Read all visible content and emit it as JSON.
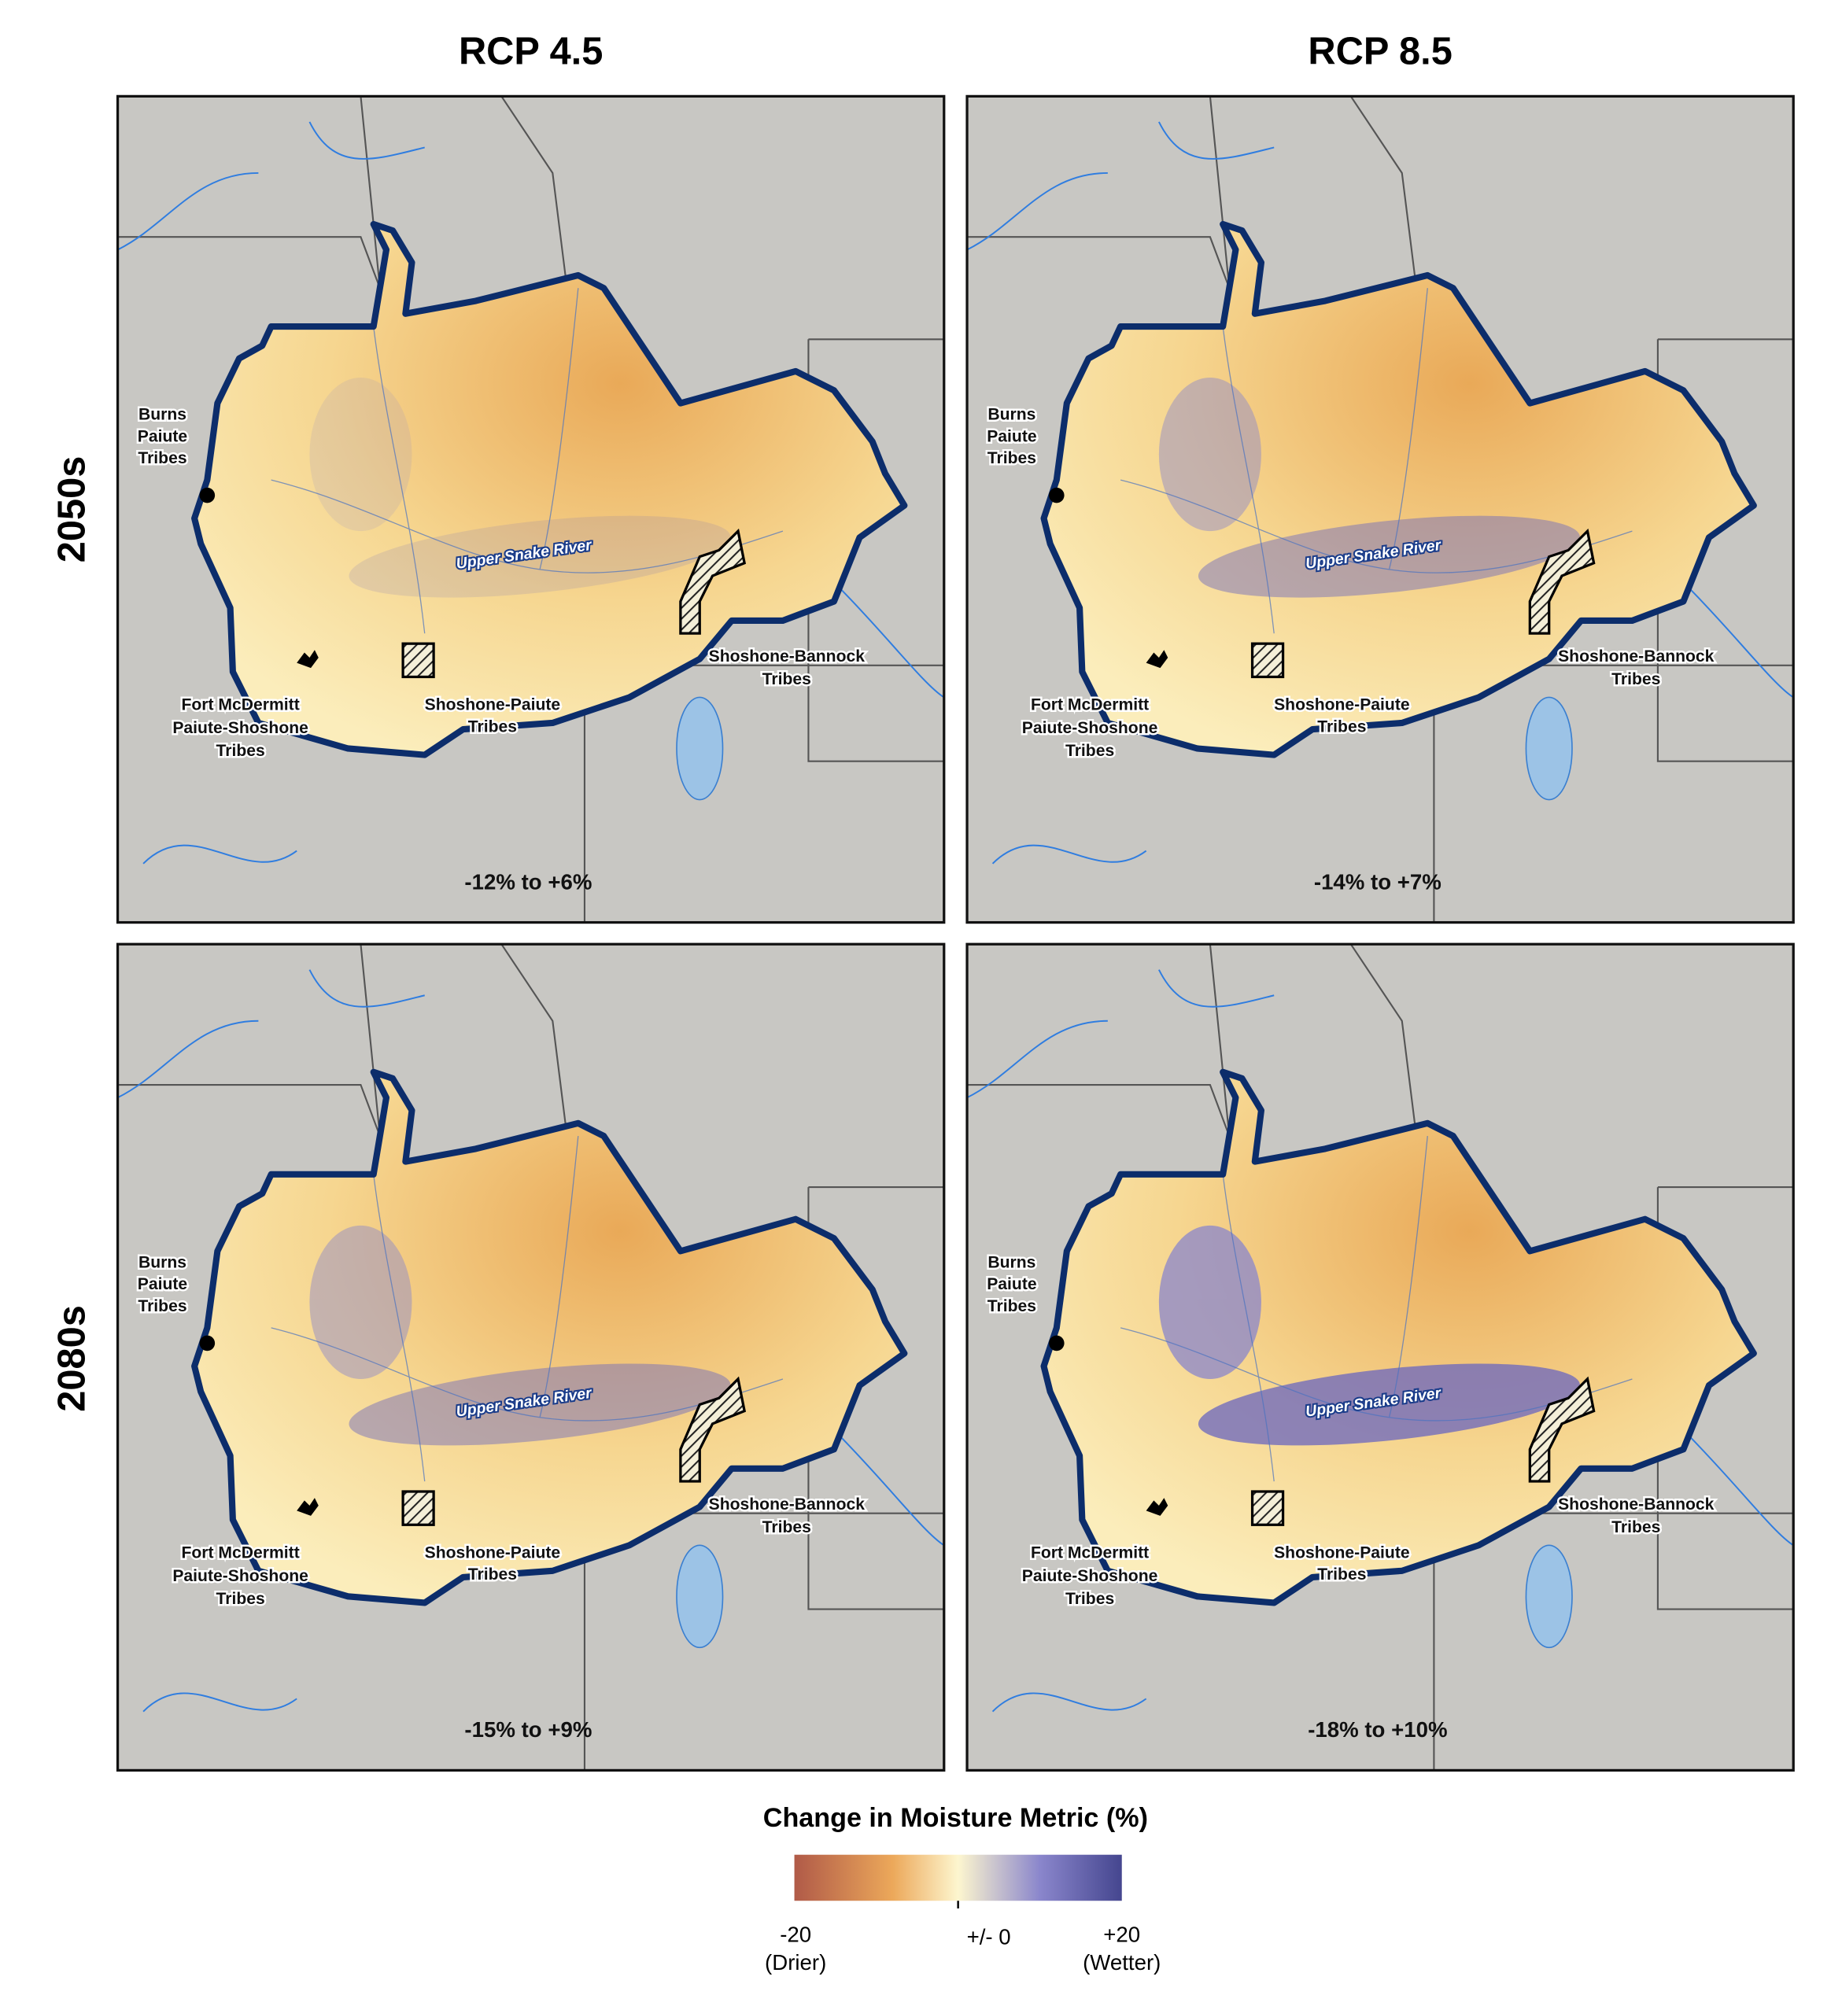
{
  "columns": [
    "RCP 4.5",
    "RCP 8.5"
  ],
  "rows": [
    "2050s",
    "2080s"
  ],
  "panels": [
    {
      "range": "-12% to +6%"
    },
    {
      "range": "-14% to +7%"
    },
    {
      "range": "-15% to +9%"
    },
    {
      "range": "-18% to +10%"
    }
  ],
  "map_labels": {
    "burns": [
      "Burns",
      "Paiute",
      "Tribes"
    ],
    "fort_mcdermitt": [
      "Fort McDermitt",
      "Paiute-Shoshone",
      "Tribes"
    ],
    "shoshone_paiute": [
      "Shoshone-Paiute",
      "Tribes"
    ],
    "shoshone_bannock": [
      "Shoshone-Bannock",
      "Tribes"
    ],
    "river": "Upper Snake River"
  },
  "legend": {
    "title": "Change in Moisture Metric (%)",
    "min": [
      "-20",
      "(Drier)"
    ],
    "mid": "+/- 0",
    "max": [
      "+20",
      "(Wetter)"
    ]
  }
}
